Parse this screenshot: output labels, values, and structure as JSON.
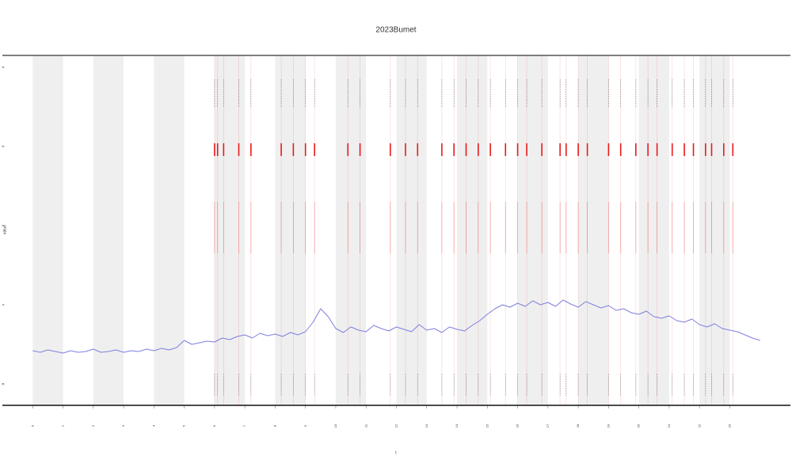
{
  "chart_data": {
    "type": "line",
    "title": "2023Bumet",
    "x_label": "t",
    "y_label": "value",
    "xlim": [
      -1,
      25
    ],
    "ylim": [
      -0.27,
      4.15
    ],
    "xticks": [
      0,
      1,
      2,
      3,
      4,
      5,
      6,
      7,
      8,
      9,
      10,
      11,
      12,
      13,
      14,
      15,
      16,
      17,
      18,
      19,
      20,
      21,
      22,
      23
    ],
    "yticks": [
      0,
      1,
      2,
      3,
      4
    ],
    "bands": [
      [
        0,
        1
      ],
      [
        2,
        3
      ],
      [
        4,
        5
      ],
      [
        6,
        7
      ],
      [
        8,
        9
      ],
      [
        10,
        11
      ],
      [
        12,
        13
      ],
      [
        14,
        15
      ],
      [
        16,
        17
      ],
      [
        18,
        19
      ],
      [
        20,
        21
      ],
      [
        22,
        23
      ]
    ],
    "band_color": "#efefef",
    "events": [
      6.0,
      6.1,
      6.3,
      6.8,
      7.2,
      8.2,
      8.6,
      9.0,
      9.3,
      10.4,
      10.8,
      11.8,
      12.3,
      12.7,
      13.5,
      13.9,
      14.3,
      14.7,
      15.1,
      15.6,
      16.0,
      16.3,
      16.8,
      17.4,
      17.6,
      18.0,
      18.3,
      19.0,
      19.4,
      19.9,
      20.3,
      20.6,
      21.1,
      21.5,
      21.8,
      22.2,
      22.4,
      22.8,
      23.1
    ],
    "event_color": "#e8191b",
    "series": [
      {
        "name": "value",
        "color": "#7f7fe0",
        "x": [
          0,
          0.25,
          0.5,
          0.75,
          1,
          1.25,
          1.5,
          1.75,
          2,
          2.25,
          2.5,
          2.75,
          3,
          3.25,
          3.5,
          3.75,
          4,
          4.25,
          4.5,
          4.75,
          5,
          5.25,
          5.5,
          5.75,
          6,
          6.25,
          6.5,
          6.75,
          7,
          7.25,
          7.5,
          7.75,
          8,
          8.25,
          8.5,
          8.75,
          9,
          9.25,
          9.5,
          9.75,
          10,
          10.25,
          10.5,
          10.75,
          11,
          11.25,
          11.5,
          11.75,
          12,
          12.25,
          12.5,
          12.75,
          13,
          13.25,
          13.5,
          13.75,
          14,
          14.25,
          14.5,
          14.75,
          15,
          15.25,
          15.5,
          15.75,
          16,
          16.25,
          16.5,
          16.75,
          17,
          17.25,
          17.5,
          17.75,
          18,
          18.25,
          18.5,
          18.75,
          19,
          19.25,
          19.5,
          19.75,
          20,
          20.25,
          20.5,
          20.75,
          21,
          21.25,
          21.5,
          21.75,
          22,
          22.25,
          22.5,
          22.75,
          23,
          23.25,
          23.5,
          23.75,
          24
        ],
        "values": [
          0.42,
          0.4,
          0.43,
          0.41,
          0.39,
          0.42,
          0.4,
          0.41,
          0.44,
          0.4,
          0.41,
          0.43,
          0.4,
          0.42,
          0.41,
          0.44,
          0.42,
          0.45,
          0.43,
          0.46,
          0.55,
          0.5,
          0.52,
          0.54,
          0.53,
          0.58,
          0.56,
          0.6,
          0.62,
          0.58,
          0.64,
          0.61,
          0.63,
          0.6,
          0.65,
          0.62,
          0.66,
          0.78,
          0.95,
          0.85,
          0.7,
          0.65,
          0.72,
          0.68,
          0.66,
          0.74,
          0.7,
          0.67,
          0.72,
          0.69,
          0.66,
          0.75,
          0.68,
          0.7,
          0.65,
          0.72,
          0.69,
          0.67,
          0.74,
          0.8,
          0.88,
          0.95,
          1.0,
          0.97,
          1.02,
          0.98,
          1.05,
          1.0,
          1.03,
          0.98,
          1.06,
          1.01,
          0.97,
          1.04,
          1.0,
          0.96,
          0.99,
          0.93,
          0.95,
          0.9,
          0.88,
          0.92,
          0.85,
          0.83,
          0.86,
          0.8,
          0.78,
          0.82,
          0.75,
          0.72,
          0.76,
          0.7,
          0.68,
          0.66,
          0.62,
          0.58,
          0.55
        ]
      }
    ]
  }
}
